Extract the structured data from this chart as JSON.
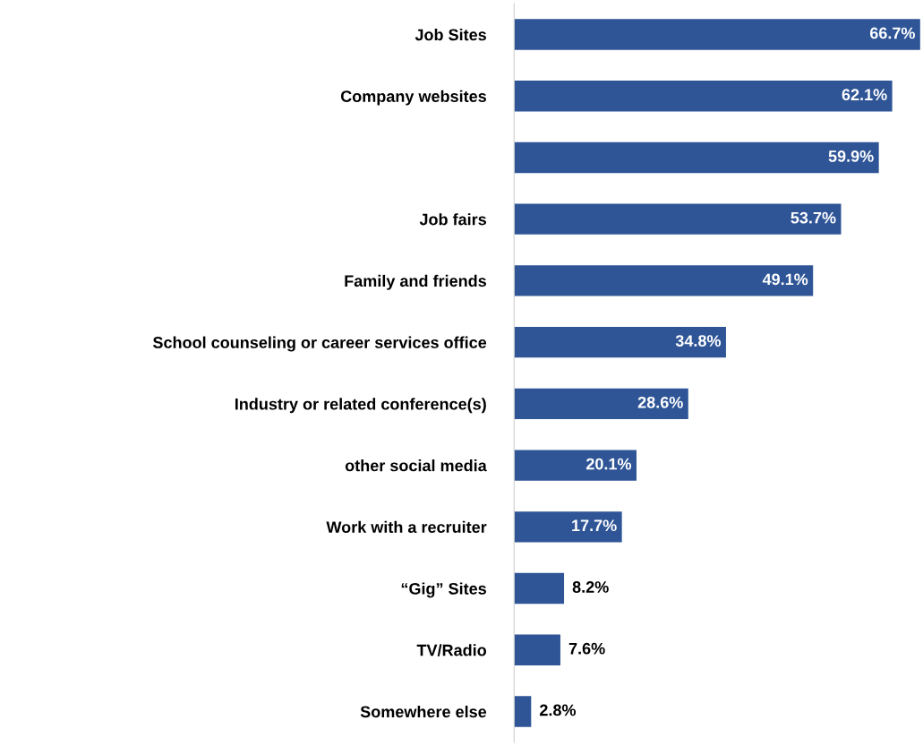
{
  "chart_data": {
    "type": "bar",
    "orientation": "horizontal",
    "value_labels": [
      "66.7%",
      "62.1%",
      "59.9%",
      "53.7%",
      "49.1%",
      "34.8%",
      "28.6%",
      "20.1%",
      "17.7%",
      "8.2%",
      "7.6%",
      "2.8%"
    ],
    "color": "#2f5597",
    "categories": [
      "Job Sites",
      "Company websites",
      null,
      "Job fairs",
      "Family and friends",
      "School counseling or career services office",
      "Industry or related conference(s)",
      "other social media",
      "Work with a recruiter",
      "“Gig” Sites",
      "TV/Radio",
      "Somewhere else"
    ],
    "values": [
      66.7,
      62.1,
      59.9,
      53.7,
      49.1,
      34.8,
      28.6,
      20.1,
      17.7,
      8.2,
      7.6,
      2.8
    ],
    "grid": false,
    "legend": false
  }
}
